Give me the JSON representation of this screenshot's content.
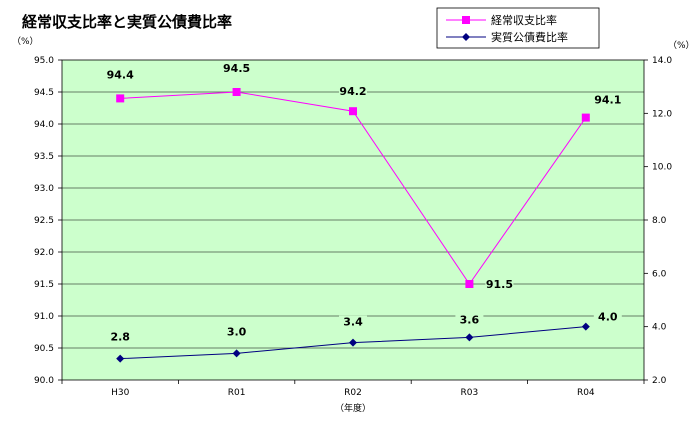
{
  "chart_data": {
    "type": "line",
    "title": "経常収支比率と実質公債費比率",
    "categories": [
      "H30",
      "R01",
      "R02",
      "R03",
      "R04"
    ],
    "xlabel": "（年度）",
    "y_left": {
      "unit": "（%）",
      "range": [
        90.0,
        95.0
      ],
      "step": 0.5,
      "ticks": [
        "90.0",
        "90.5",
        "91.0",
        "91.5",
        "92.0",
        "92.5",
        "93.0",
        "93.5",
        "94.0",
        "94.5",
        "95.0"
      ]
    },
    "y_right": {
      "unit": "（%）",
      "range": [
        2.0,
        14.0
      ],
      "step": 2.0,
      "ticks": [
        "2.0",
        "4.0",
        "6.0",
        "8.0",
        "10.0",
        "12.0",
        "14.0"
      ]
    },
    "grid": true,
    "legend_position": "top-right",
    "series": [
      {
        "name": "経常収支比率",
        "axis": "left",
        "color": "#ff00ff",
        "marker": "square",
        "values": [
          94.4,
          94.5,
          94.2,
          91.5,
          94.1
        ],
        "labels": [
          "94.4",
          "94.5",
          "94.2",
          "91.5",
          "94.1"
        ]
      },
      {
        "name": "実質公債費比率",
        "axis": "right",
        "color": "#000080",
        "marker": "diamond",
        "values": [
          2.8,
          3.0,
          3.4,
          3.6,
          4.0
        ],
        "labels": [
          "2.8",
          "3.0",
          "3.4",
          "3.6",
          "4.0"
        ]
      }
    ],
    "plot_background": "#ccffcc"
  }
}
